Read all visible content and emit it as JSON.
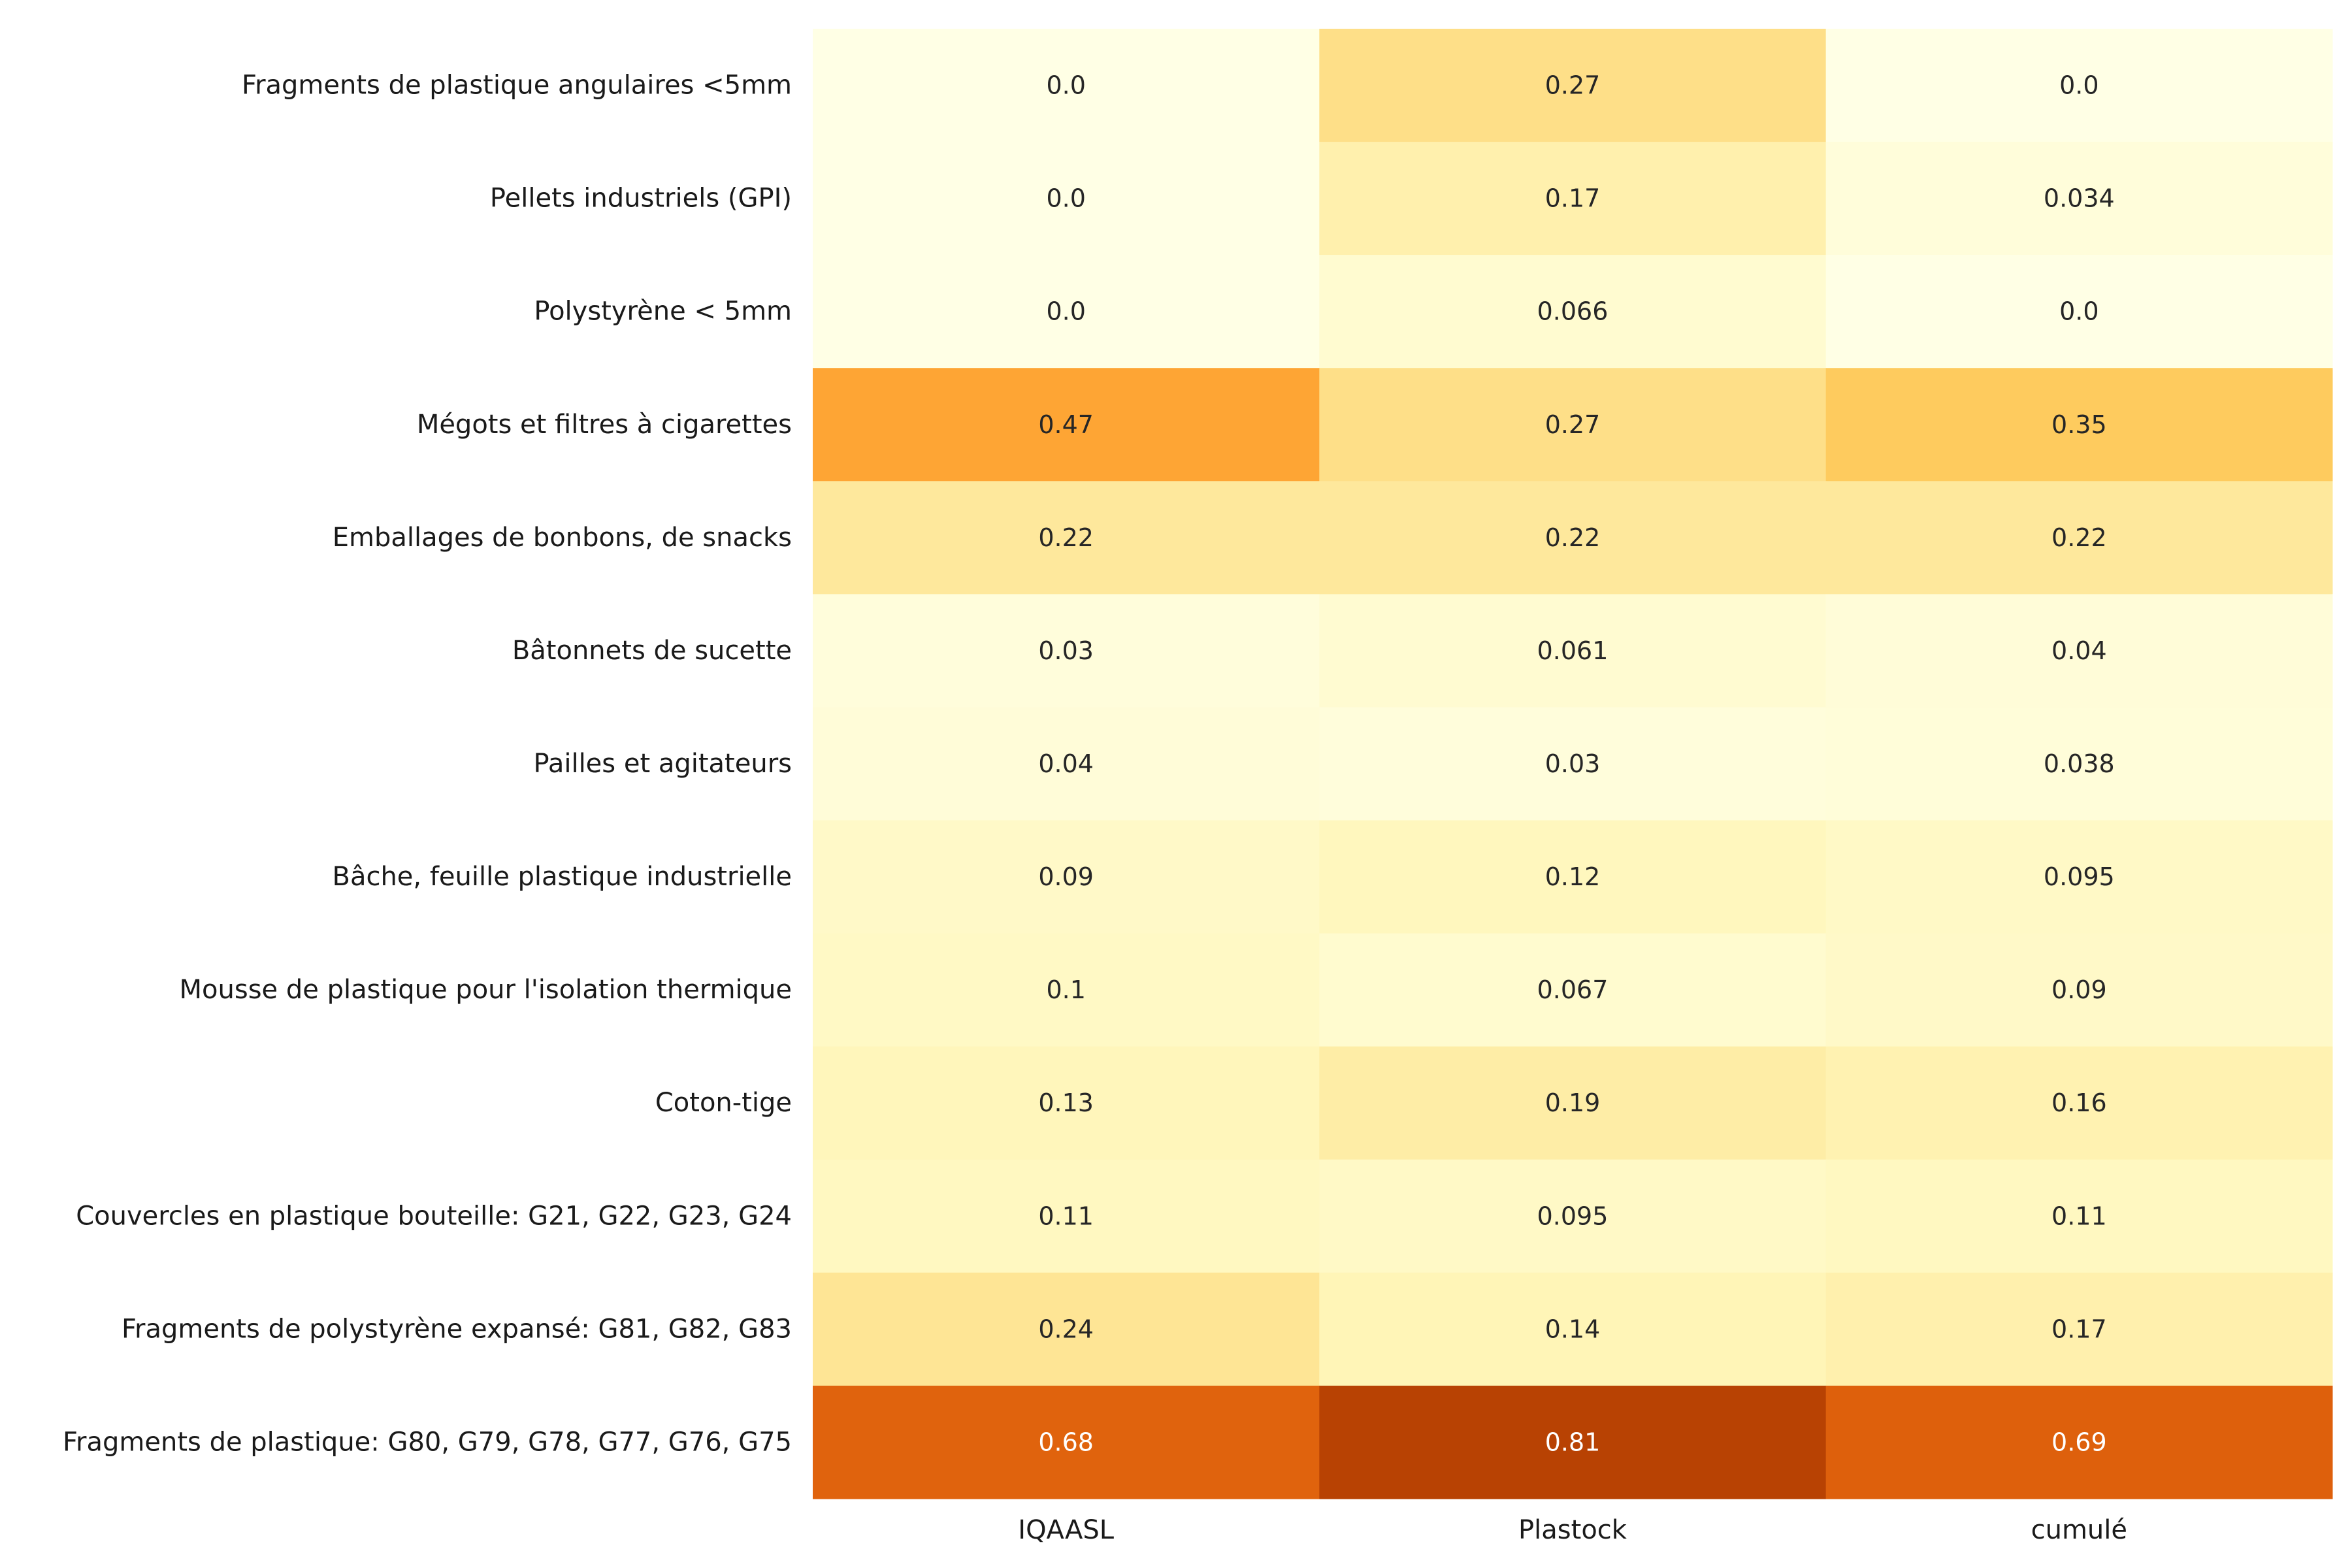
{
  "chart_data": {
    "type": "heatmap",
    "title": "",
    "xlabel": "",
    "ylabel": "",
    "columns": [
      "IQAASL",
      "Plastock",
      "cumulé"
    ],
    "rows": [
      "Fragments de plastique angulaires <5mm",
      "Pellets industriels (GPI)",
      "Polystyrène < 5mm",
      "Mégots et filtres à cigarettes",
      "Emballages de bonbons, de snacks",
      "Bâtonnets de sucette",
      "Pailles et agitateurs",
      "Bâche, feuille plastique industrielle",
      "Mousse de plastique pour l'isolation thermique",
      "Coton-tige",
      "Couvercles en plastique bouteille:  G21, G22, G23, G24",
      "Fragments de polystyrène expansé: G81, G82, G83",
      "Fragments de plastique: G80, G79, G78, G77, G76, G75"
    ],
    "values": [
      [
        0.0,
        0.27,
        0.0
      ],
      [
        0.0,
        0.17,
        0.034
      ],
      [
        0.0,
        0.066,
        0.0
      ],
      [
        0.47,
        0.27,
        0.35
      ],
      [
        0.22,
        0.22,
        0.22
      ],
      [
        0.03,
        0.061,
        0.04
      ],
      [
        0.04,
        0.03,
        0.038
      ],
      [
        0.09,
        0.12,
        0.095
      ],
      [
        0.1,
        0.067,
        0.09
      ],
      [
        0.13,
        0.19,
        0.16
      ],
      [
        0.11,
        0.095,
        0.11
      ],
      [
        0.24,
        0.14,
        0.17
      ],
      [
        0.68,
        0.81,
        0.69
      ]
    ],
    "value_labels": [
      [
        "0.0",
        "0.27",
        "0.0"
      ],
      [
        "0.0",
        "0.17",
        "0.034"
      ],
      [
        "0.0",
        "0.066",
        "0.0"
      ],
      [
        "0.47",
        "0.27",
        "0.35"
      ],
      [
        "0.22",
        "0.22",
        "0.22"
      ],
      [
        "0.03",
        "0.061",
        "0.04"
      ],
      [
        "0.04",
        "0.03",
        "0.038"
      ],
      [
        "0.09",
        "0.12",
        "0.095"
      ],
      [
        "0.1",
        "0.067",
        "0.09"
      ],
      [
        "0.13",
        "0.19",
        "0.16"
      ],
      [
        "0.11",
        "0.095",
        "0.11"
      ],
      [
        "0.24",
        "0.14",
        "0.17"
      ],
      [
        "0.68",
        "0.81",
        "0.69"
      ]
    ],
    "colormap": "YlOrBr",
    "vmin": 0,
    "vmax": 0.81,
    "grid": false,
    "legend": "none"
  }
}
